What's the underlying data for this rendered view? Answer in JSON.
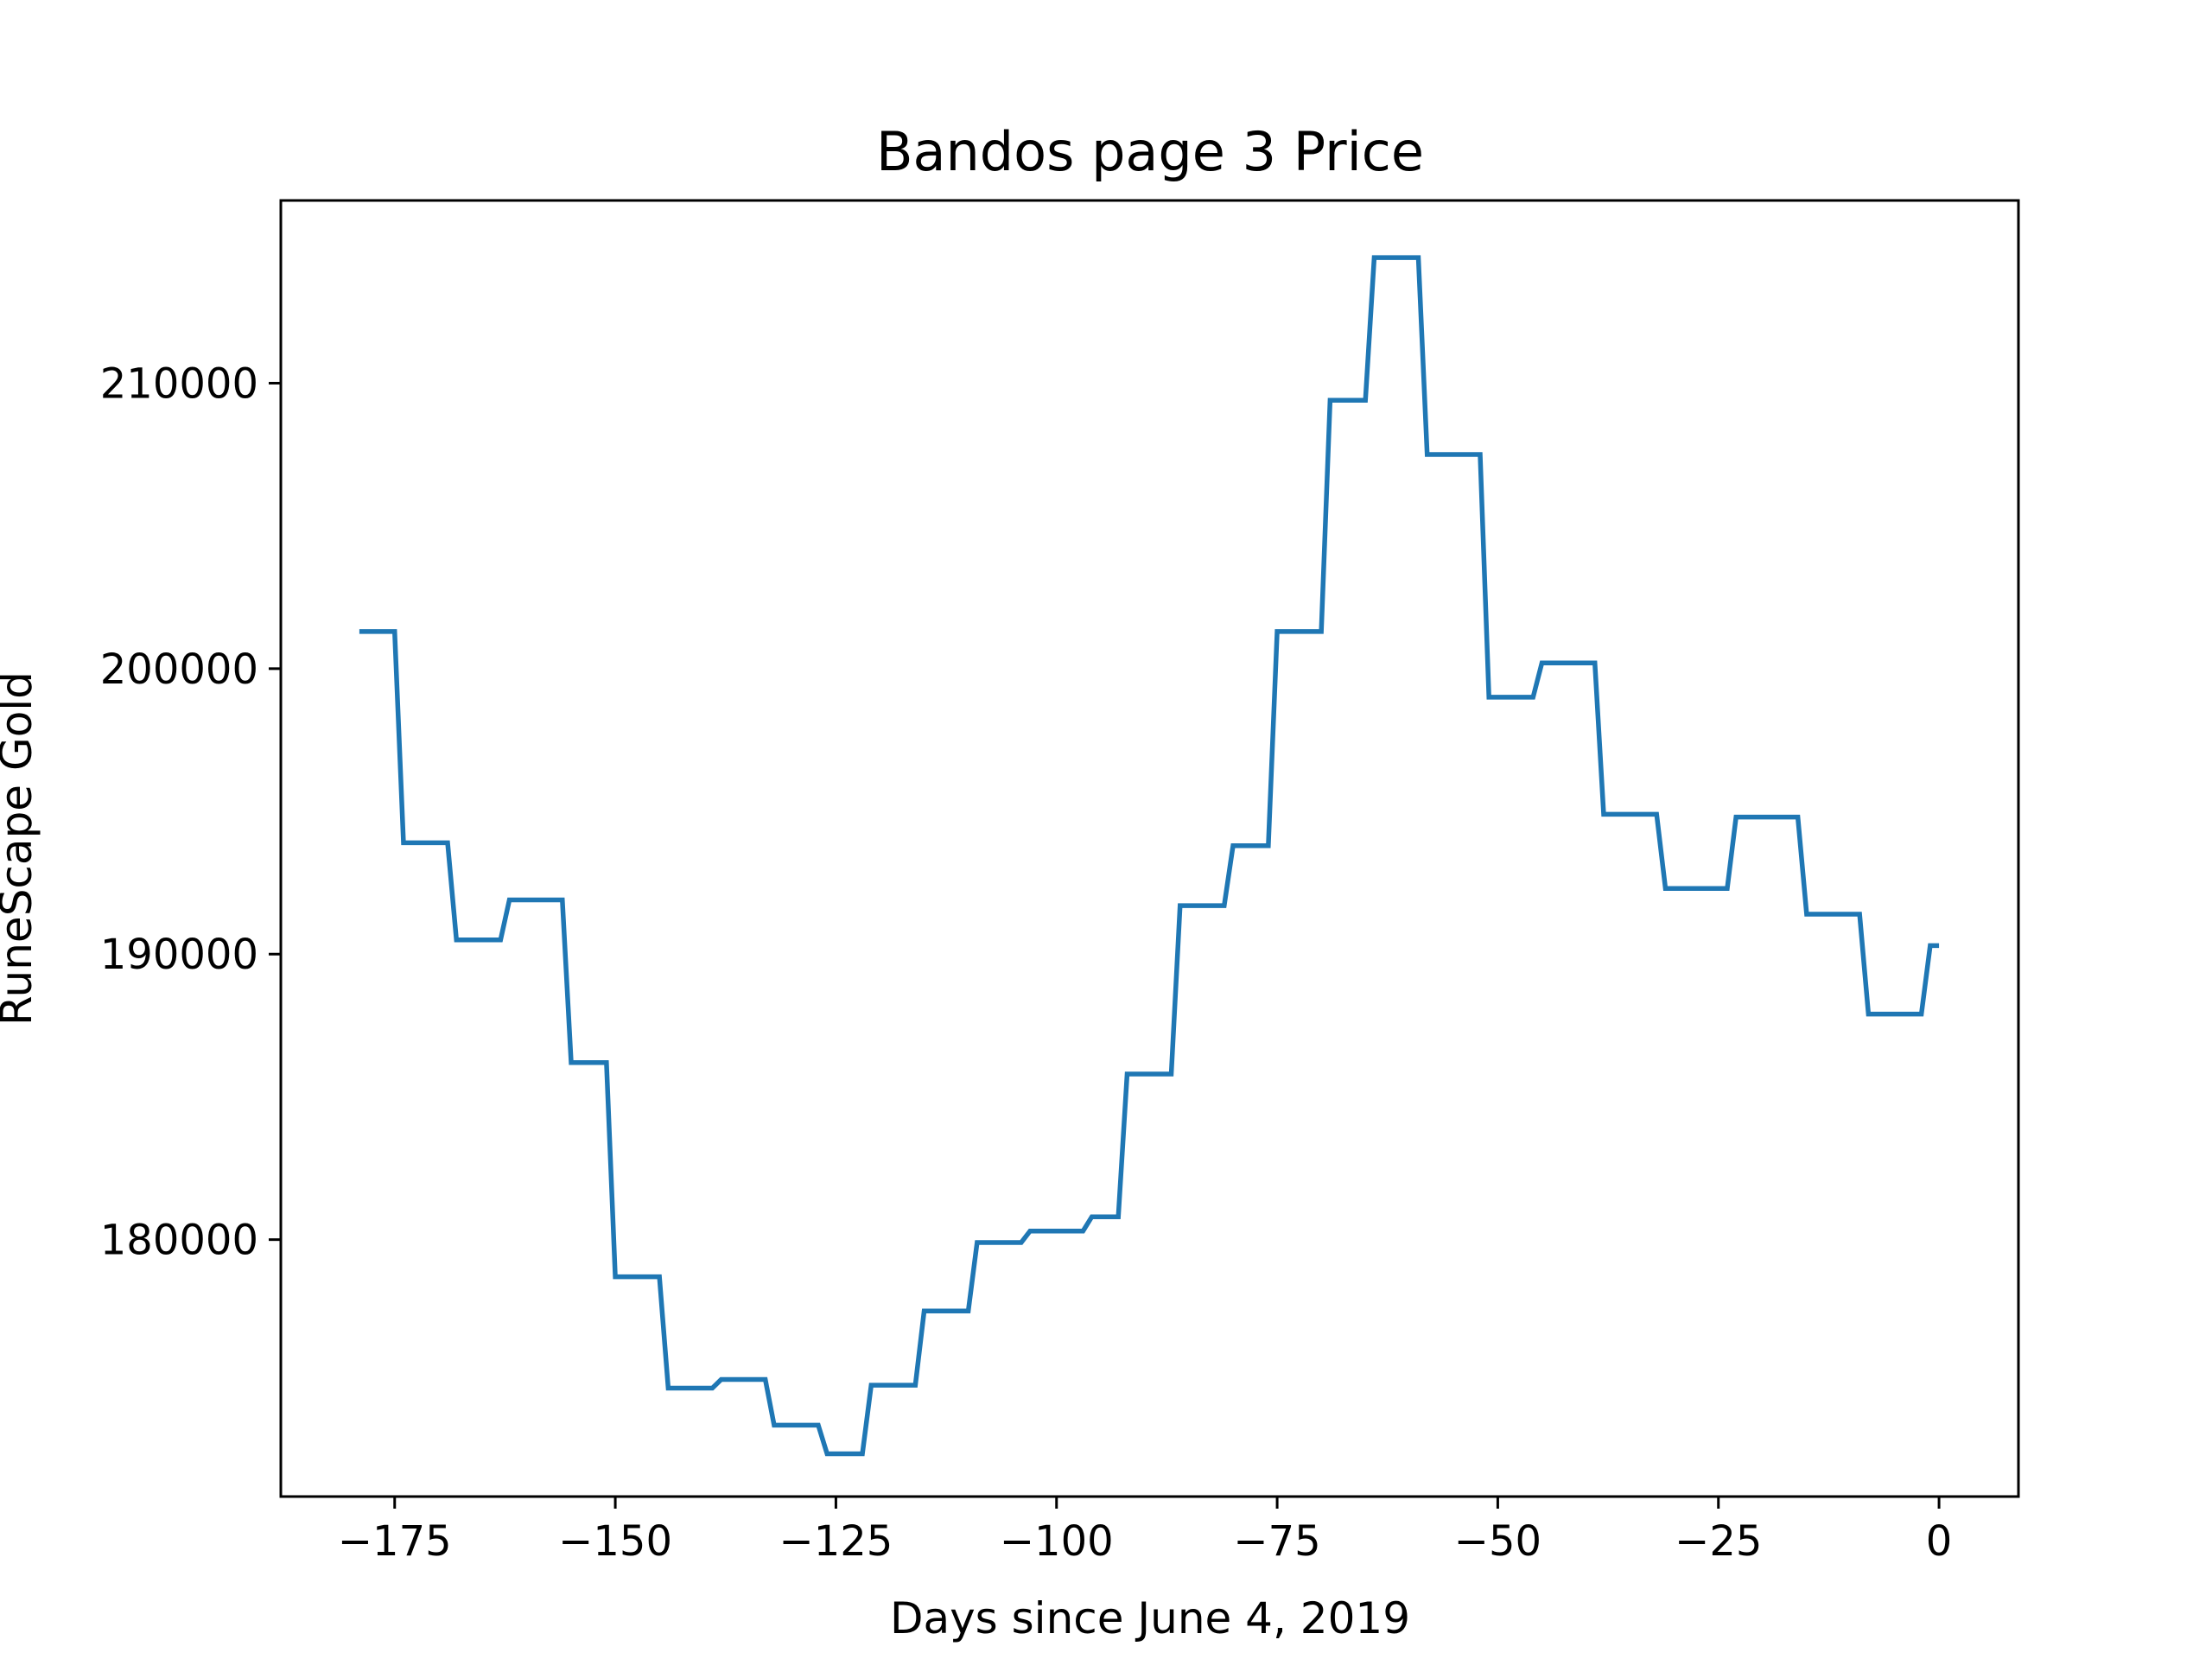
{
  "chart_data": {
    "type": "line",
    "title": "Bandos page 3 Price",
    "xlabel": "Days since June 4, 2019",
    "ylabel": "RuneScape Gold",
    "xlim": [
      -187.9,
      9
    ],
    "ylim": [
      171000,
      216400
    ],
    "xticks": [
      -175,
      -150,
      -125,
      -100,
      -75,
      -50,
      -25,
      0
    ],
    "xtick_labels": [
      "−175",
      "−150",
      "−125",
      "−100",
      "−75",
      "−50",
      "−25",
      "0"
    ],
    "yticks": [
      180000,
      190000,
      200000,
      210000
    ],
    "ytick_labels": [
      "180000",
      "190000",
      "200000",
      "210000"
    ],
    "grid": false,
    "color": "#1f77b4",
    "series": [
      {
        "x": [
          -179,
          -175,
          -174,
          -169,
          -168,
          -163,
          -162,
          -156,
          -155,
          -151,
          -150,
          -145,
          -144,
          -139,
          -138,
          -133,
          -132,
          -127,
          -126,
          -122,
          -121,
          -116,
          -115,
          -110,
          -109,
          -104,
          -103,
          -97,
          -96,
          -93,
          -92,
          -87,
          -86,
          -81,
          -80,
          -76,
          -75,
          -70,
          -69,
          -65,
          -64,
          -59,
          -58,
          -52,
          -51,
          -46,
          -45,
          -39,
          -38,
          -32,
          -31,
          -24,
          -23,
          -16,
          -15,
          -9,
          -8,
          -2,
          -1,
          0
        ],
        "y": [
          201300,
          201300,
          193900,
          193900,
          190500,
          190500,
          191900,
          191900,
          186200,
          186200,
          178700,
          178700,
          174800,
          174800,
          175100,
          175100,
          173500,
          173500,
          172500,
          172500,
          174900,
          174900,
          177500,
          177500,
          179900,
          179900,
          180300,
          180300,
          180800,
          180800,
          185800,
          185800,
          191700,
          191700,
          193800,
          193800,
          201300,
          201300,
          209400,
          209400,
          214400,
          214400,
          207500,
          207500,
          199000,
          199000,
          200200,
          200200,
          194900,
          194900,
          192300,
          192300,
          194800,
          194800,
          191400,
          191400,
          187900,
          187900,
          190300,
          190300
        ]
      }
    ]
  }
}
